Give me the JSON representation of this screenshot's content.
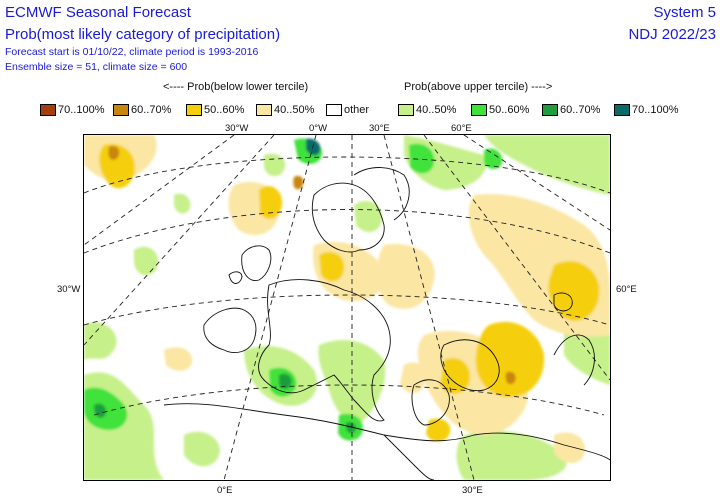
{
  "header": {
    "title": "ECMWF Seasonal Forecast",
    "subtitle": "Prob(most likely category of precipitation)",
    "forecast_start": "Forecast start is 01/10/22, climate period is 1993-2016",
    "ensemble": "Ensemble size = 51, climate size = 600",
    "system": "System 5",
    "season": "NDJ 2022/23"
  },
  "legend": {
    "below_label": "<---- Prob(below lower tercile)",
    "above_label": "Prob(above upper tercile) ---->",
    "items": [
      {
        "label": "70..100%",
        "color": "#a23f0c"
      },
      {
        "label": "60..70%",
        "color": "#c9860f"
      },
      {
        "label": "50..60%",
        "color": "#f5cf0c"
      },
      {
        "label": "40..50%",
        "color": "#fbe6a3"
      },
      {
        "label": "other",
        "color": "#ffffff"
      },
      {
        "label": "40..50%",
        "color": "#c6f08a"
      },
      {
        "label": "50..60%",
        "color": "#3fe23a"
      },
      {
        "label": "60..70%",
        "color": "#1f9d3e"
      },
      {
        "label": "70..100%",
        "color": "#0c6a6a"
      }
    ]
  },
  "map": {
    "labels": {
      "top_30w": "30°W",
      "top_0": "0°W",
      "top_30e": "30°E",
      "top_60e": "60°E",
      "left_30w": "30°W",
      "right_60e": "60°E",
      "bottom_0e": "0°E",
      "bottom_30e": "30°E"
    }
  }
}
